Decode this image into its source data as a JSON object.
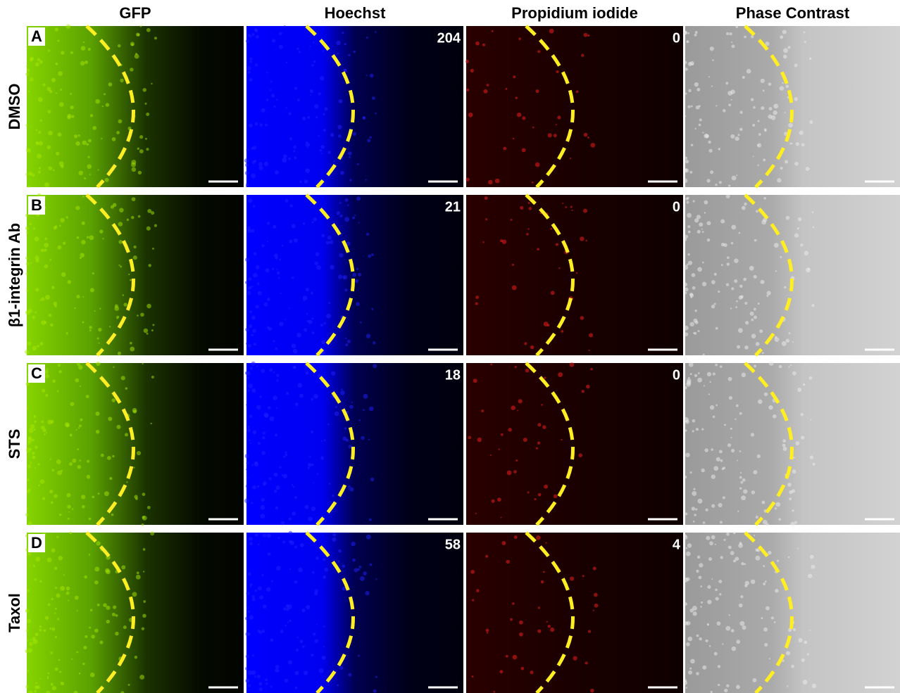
{
  "columns": [
    "GFP",
    "Hoechst",
    "Propidium iodide",
    "Phase Contrast"
  ],
  "rows": [
    {
      "letter": "A",
      "label": "DMSO",
      "hoechst_count": 204,
      "pi_count": 0
    },
    {
      "letter": "B",
      "label": "β1-integrin Ab",
      "hoechst_count": 21,
      "pi_count": 0
    },
    {
      "letter": "C",
      "label": "STS",
      "hoechst_count": 18,
      "pi_count": 0
    },
    {
      "letter": "D",
      "label": "Taxol",
      "hoechst_count": 58,
      "pi_count": 4
    }
  ]
}
